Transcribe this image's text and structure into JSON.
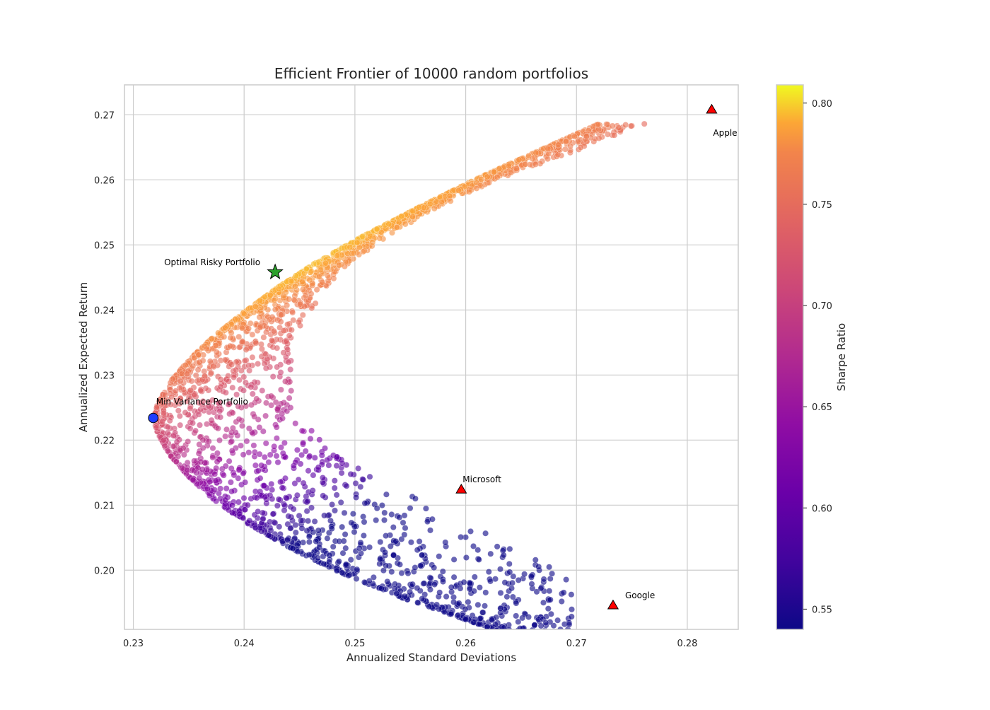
{
  "chart_data": {
    "type": "scatter",
    "title": "Efficient Frontier of 10000 random portfolios",
    "xlabel": "Annualized Standard Deviations",
    "ylabel": "Annualized Expected Return",
    "xlim": [
      0.2292,
      0.2846
    ],
    "ylim": [
      0.1909,
      0.2746
    ],
    "grid": true,
    "x_ticks": [
      "0.23",
      "0.24",
      "0.25",
      "0.26",
      "0.27",
      "0.28"
    ],
    "y_ticks": [
      "0.20",
      "0.21",
      "0.22",
      "0.23",
      "0.24",
      "0.25",
      "0.26",
      "0.27"
    ],
    "colorbar": {
      "label": "Sharpe Ratio",
      "colormap": "plasma",
      "range": [
        0.54,
        0.809
      ],
      "ticks": [
        "0.55",
        "0.60",
        "0.65",
        "0.70",
        "0.75",
        "0.80"
      ]
    },
    "portfolio_count": 10000,
    "frontier": {
      "min_variance": {
        "x": 0.2318,
        "y": 0.2234
      },
      "upper_edge": [
        [
          0.2318,
          0.2234
        ],
        [
          0.2322,
          0.2256
        ],
        [
          0.2333,
          0.2289
        ],
        [
          0.235,
          0.2323
        ],
        [
          0.2371,
          0.2357
        ],
        [
          0.2398,
          0.2394
        ],
        [
          0.2429,
          0.2433
        ],
        [
          0.2465,
          0.2473
        ],
        [
          0.2508,
          0.2514
        ],
        [
          0.2557,
          0.2557
        ],
        [
          0.2608,
          0.26
        ],
        [
          0.2665,
          0.2644
        ],
        [
          0.272,
          0.2686
        ],
        [
          0.2757,
          0.2678
        ],
        [
          0.2785,
          0.2688
        ],
        [
          0.2801,
          0.2699
        ]
      ],
      "lower_edge": [
        [
          0.2318,
          0.2234
        ],
        [
          0.2322,
          0.2209
        ],
        [
          0.2333,
          0.2177
        ],
        [
          0.235,
          0.2144
        ],
        [
          0.2373,
          0.2108
        ],
        [
          0.2403,
          0.2072
        ],
        [
          0.2442,
          0.2034
        ],
        [
          0.2486,
          0.1997
        ],
        [
          0.2542,
          0.1958
        ],
        [
          0.2605,
          0.1921
        ],
        [
          0.2667,
          0.1884
        ],
        [
          0.2696,
          0.1872
        ]
      ],
      "cloud_right_edge": [
        [
          0.2801,
          0.2699
        ],
        [
          0.272,
          0.2658
        ],
        [
          0.2636,
          0.2605
        ],
        [
          0.2566,
          0.2551
        ],
        [
          0.2507,
          0.2487
        ],
        [
          0.2477,
          0.2441
        ],
        [
          0.2455,
          0.2386
        ],
        [
          0.2443,
          0.2338
        ],
        [
          0.2442,
          0.2288
        ],
        [
          0.2452,
          0.2236
        ],
        [
          0.2478,
          0.218
        ],
        [
          0.2531,
          0.2131
        ],
        [
          0.2591,
          0.2081
        ],
        [
          0.2652,
          0.2033
        ],
        [
          0.2696,
          0.1981
        ],
        [
          0.2696,
          0.1872
        ]
      ]
    },
    "optimal_risky": {
      "x": 0.2428,
      "y": 0.2458,
      "label": "Optimal Risky Portfolio"
    },
    "min_variance_marker": {
      "x": 0.2318,
      "y": 0.2234,
      "label": "Min Variance Portfolio"
    },
    "assets": [
      {
        "name": "Apple",
        "x": 0.2822,
        "y": 0.2708
      },
      {
        "name": "Microsoft",
        "x": 0.2596,
        "y": 0.2124
      },
      {
        "name": "Google",
        "x": 0.2733,
        "y": 0.1946
      }
    ],
    "colors": {
      "optimal_marker": "#2ca02c",
      "min_variance_marker": "#1f3dff",
      "asset_marker": "#ff0000",
      "grid": "#cccccc"
    }
  }
}
